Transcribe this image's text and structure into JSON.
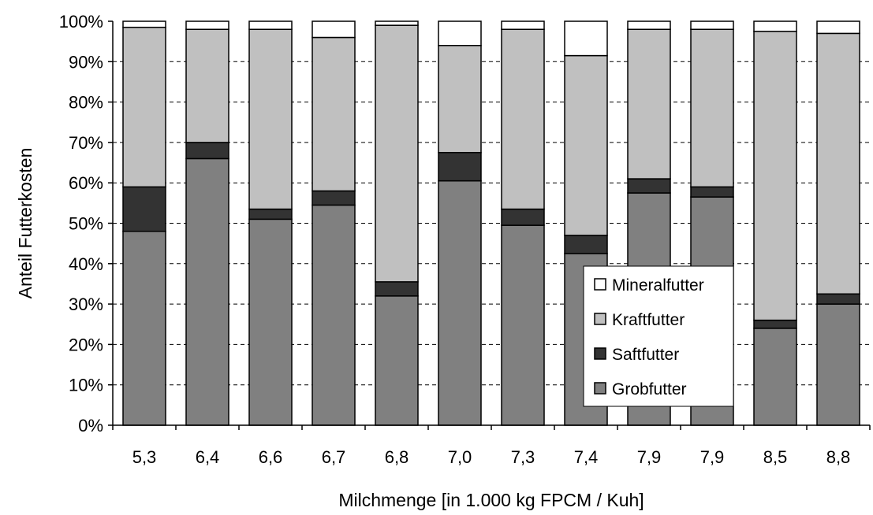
{
  "chart_data": {
    "type": "bar",
    "stacked": true,
    "percent": true,
    "title": "",
    "xlabel": "Milchmenge  [in 1.000 kg FPCM / Kuh]",
    "ylabel": "Anteil Futterkosten",
    "ylim": [
      0,
      100
    ],
    "yticks": [
      "0%",
      "10%",
      "20%",
      "30%",
      "40%",
      "50%",
      "60%",
      "70%",
      "80%",
      "90%",
      "100%"
    ],
    "ygrid": true,
    "legend_position": "bottom-right",
    "categories": [
      "5,3",
      "6,4",
      "6,6",
      "6,7",
      "6,8",
      "7,0",
      "7,3",
      "7,4",
      "7,9",
      "7,9",
      "8,5",
      "8,8"
    ],
    "series": [
      {
        "name": "Grobfutter",
        "color": "#808080",
        "values": [
          48,
          66,
          51,
          54.5,
          32,
          60.5,
          49.5,
          42.5,
          57.5,
          56.5,
          24,
          30
        ]
      },
      {
        "name": "Saftfutter",
        "color": "#333333",
        "values": [
          11,
          4,
          2.5,
          3.5,
          3.5,
          7,
          4,
          4.5,
          3.5,
          2.5,
          2,
          2.5
        ]
      },
      {
        "name": "Kraftfutter",
        "color": "#c0c0c0",
        "values": [
          39.5,
          28,
          44.5,
          38,
          63.5,
          26.5,
          44.5,
          44.5,
          37,
          39,
          71.5,
          64.5
        ]
      },
      {
        "name": "Mineralfutter",
        "color": "#ffffff",
        "values": [
          1.5,
          2,
          2,
          4,
          1,
          6,
          2,
          8.5,
          2,
          2,
          2.5,
          3
        ]
      }
    ],
    "legend": {
      "entries": [
        "Mineralfutter",
        "Kraftfutter",
        "Saftfutter",
        "Grobfutter"
      ]
    }
  }
}
